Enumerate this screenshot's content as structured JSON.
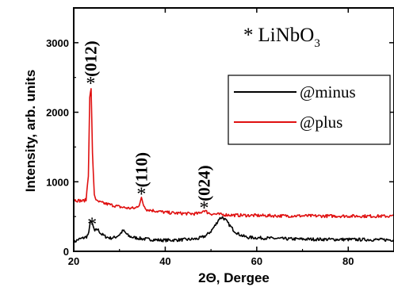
{
  "chart_data": {
    "type": "line",
    "xlabel": "2Θ, Dergee",
    "ylabel": "Intensity, arb. units",
    "xlim": [
      20,
      90
    ],
    "ylim": [
      0,
      3500
    ],
    "xticks": [
      20,
      40,
      60,
      80
    ],
    "yticks": [
      0,
      1000,
      2000,
      3000
    ],
    "legend_position": "center-right",
    "annotation": {
      "marker": "*",
      "text": "LiNbO",
      "subscript": "3"
    },
    "peak_labels": [
      {
        "label": "(012)",
        "x": 23.7,
        "y": 2350
      },
      {
        "label": "(110)",
        "x": 34.8,
        "y": 760
      },
      {
        "label": "(024)",
        "x": 48.5,
        "y": 560
      }
    ],
    "minus_star": {
      "x": 24,
      "y": 460
    },
    "series": [
      {
        "name": "@minus",
        "color": "#000000",
        "x": [
          20,
          21,
          22,
          22.8,
          23.3,
          23.7,
          24.1,
          24.6,
          25.2,
          26,
          27,
          28,
          29,
          30,
          30.8,
          31.4,
          32,
          33,
          34,
          35,
          37,
          39,
          41,
          43,
          45,
          47,
          48,
          49,
          50,
          51,
          51.8,
          52.5,
          53.2,
          54,
          55,
          56,
          57,
          58,
          60,
          62,
          64,
          66,
          70,
          75,
          80,
          85,
          90
        ],
        "y": [
          130,
          170,
          190,
          210,
          260,
          460,
          380,
          290,
          320,
          250,
          210,
          190,
          200,
          240,
          300,
          260,
          220,
          200,
          190,
          180,
          170,
          160,
          160,
          165,
          170,
          180,
          200,
          230,
          290,
          380,
          470,
          490,
          450,
          380,
          300,
          250,
          220,
          200,
          195,
          190,
          185,
          180,
          175,
          172,
          170,
          168,
          165
        ]
      },
      {
        "name": "@plus",
        "color": "#e01010",
        "x": [
          20,
          21,
          22,
          22.7,
          23.2,
          23.5,
          23.8,
          24.1,
          24.5,
          25,
          26,
          28,
          30,
          32,
          33.5,
          34.3,
          34.8,
          35.3,
          36,
          38,
          40,
          42,
          44,
          46,
          47.5,
          48.2,
          48.6,
          49.2,
          50,
          52,
          55,
          60,
          65,
          70,
          75,
          80,
          85,
          90
        ],
        "y": [
          740,
          730,
          725,
          740,
          1100,
          2200,
          2350,
          1400,
          820,
          720,
          700,
          670,
          640,
          620,
          620,
          670,
          760,
          660,
          600,
          580,
          560,
          550,
          545,
          540,
          545,
          580,
          590,
          560,
          540,
          530,
          520,
          515,
          510,
          510,
          508,
          507,
          506,
          505
        ]
      }
    ]
  }
}
